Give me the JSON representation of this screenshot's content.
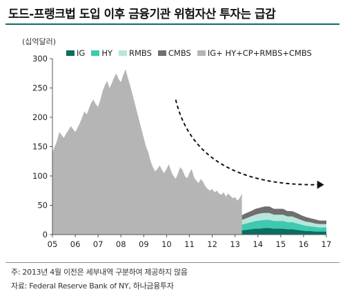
{
  "title": "도드-프랭크법 도입 이후 금융기관 위험자산 투자는 급감",
  "unit_label": "(십억달러)",
  "notes": {
    "note": "주: 2013년 4월 이전은 세부내역 구분하여 제공하지 않음",
    "source": "자료: Federal Reserve Bank of NY, 하나금융투자"
  },
  "colors": {
    "IG": "#0b6e5f",
    "HY": "#3fc9b0",
    "RMBS": "#b7e6dc",
    "CMBS": "#6f6f6f",
    "TOTAL": "#b5b5b5",
    "arrow": "#111111"
  },
  "chart_data": {
    "type": "area",
    "title": "도드-프랭크법 도입 이후 금융기관 위험자산 투자는 급감",
    "ylabel": "(십억달러)",
    "xlabel": "",
    "ylim": [
      0,
      300
    ],
    "yticks": [
      0,
      50,
      100,
      150,
      200,
      250,
      300
    ],
    "xlim": [
      2005,
      2017
    ],
    "xtick_labels": [
      "05",
      "06",
      "07",
      "08",
      "09",
      "10",
      "11",
      "12",
      "13",
      "14",
      "15",
      "16",
      "17"
    ],
    "grid": false,
    "legend": "top",
    "series": [
      {
        "name": "IG+ HY+CP+RMBS+CMBS",
        "x": [
          2005.0,
          2005.1,
          2005.2,
          2005.3,
          2005.4,
          2005.5,
          2005.6,
          2005.7,
          2005.8,
          2005.9,
          2006.0,
          2006.1,
          2006.2,
          2006.3,
          2006.4,
          2006.5,
          2006.6,
          2006.7,
          2006.8,
          2006.9,
          2007.0,
          2007.1,
          2007.2,
          2007.3,
          2007.4,
          2007.5,
          2007.6,
          2007.7,
          2007.8,
          2007.9,
          2008.0,
          2008.1,
          2008.2,
          2008.3,
          2008.4,
          2008.5,
          2008.6,
          2008.7,
          2008.8,
          2008.9,
          2009.0,
          2009.1,
          2009.2,
          2009.3,
          2009.4,
          2009.5,
          2009.6,
          2009.7,
          2009.8,
          2009.9,
          2010.0,
          2010.1,
          2010.2,
          2010.3,
          2010.4,
          2010.5,
          2010.6,
          2010.7,
          2010.8,
          2010.9,
          2011.0,
          2011.1,
          2011.2,
          2011.3,
          2011.4,
          2011.5,
          2011.6,
          2011.7,
          2011.8,
          2011.9,
          2012.0,
          2012.1,
          2012.2,
          2012.3,
          2012.4,
          2012.5,
          2012.6,
          2012.7,
          2012.8,
          2012.9,
          2013.0,
          2013.1,
          2013.2,
          2013.3
        ],
        "values": [
          140,
          150,
          160,
          175,
          170,
          165,
          172,
          178,
          185,
          180,
          175,
          182,
          190,
          200,
          210,
          205,
          215,
          225,
          230,
          222,
          218,
          230,
          245,
          255,
          262,
          250,
          258,
          268,
          275,
          265,
          260,
          272,
          282,
          268,
          255,
          240,
          225,
          210,
          195,
          180,
          165,
          150,
          140,
          125,
          115,
          108,
          112,
          118,
          110,
          105,
          112,
          120,
          108,
          100,
          95,
          105,
          115,
          110,
          100,
          96,
          105,
          112,
          98,
          92,
          88,
          95,
          90,
          82,
          78,
          75,
          78,
          72,
          75,
          70,
          68,
          72,
          65,
          70,
          66,
          62,
          64,
          58,
          62,
          70
        ]
      },
      {
        "name": "CMBS",
        "x": [
          2013.3,
          2013.5,
          2013.7,
          2013.9,
          2014.1,
          2014.3,
          2014.5,
          2014.7,
          2014.9,
          2015.1,
          2015.3,
          2015.5,
          2015.7,
          2015.9,
          2016.1,
          2016.3,
          2016.5,
          2016.7,
          2016.9,
          2017.0
        ],
        "values": [
          8,
          9,
          9,
          10,
          10,
          11,
          11,
          10,
          10,
          10,
          9,
          9,
          9,
          8,
          8,
          7,
          7,
          6,
          6,
          6
        ]
      },
      {
        "name": "RMBS",
        "x": [
          2013.3,
          2013.5,
          2013.7,
          2013.9,
          2014.1,
          2014.3,
          2014.5,
          2014.7,
          2014.9,
          2015.1,
          2015.3,
          2015.5,
          2015.7,
          2015.9,
          2016.1,
          2016.3,
          2016.5,
          2016.7,
          2016.9,
          2017.0
        ],
        "values": [
          8,
          9,
          10,
          11,
          12,
          12,
          12,
          11,
          11,
          11,
          10,
          10,
          9,
          8,
          7,
          7,
          6,
          6,
          6,
          6
        ]
      },
      {
        "name": "HY",
        "x": [
          2013.3,
          2013.5,
          2013.7,
          2013.9,
          2014.1,
          2014.3,
          2014.5,
          2014.7,
          2014.9,
          2015.1,
          2015.3,
          2015.5,
          2015.7,
          2015.9,
          2016.1,
          2016.3,
          2016.5,
          2016.7,
          2016.9,
          2017.0
        ],
        "values": [
          10,
          11,
          12,
          13,
          14,
          14,
          14,
          13,
          13,
          13,
          12,
          12,
          11,
          10,
          9,
          8,
          8,
          7,
          7,
          7
        ]
      },
      {
        "name": "IG",
        "x": [
          2013.3,
          2013.5,
          2013.7,
          2013.9,
          2014.1,
          2014.3,
          2014.5,
          2014.7,
          2014.9,
          2015.1,
          2015.3,
          2015.5,
          2015.7,
          2015.9,
          2016.1,
          2016.3,
          2016.5,
          2016.7,
          2016.9,
          2017.0
        ],
        "values": [
          7,
          8,
          9,
          10,
          10,
          11,
          11,
          10,
          10,
          10,
          9,
          9,
          8,
          7,
          6,
          6,
          5,
          5,
          5,
          5
        ]
      }
    ],
    "legend_entries": [
      "IG",
      "HY",
      "RMBS",
      "CMBS",
      "IG+ HY+CP+RMBS+CMBS"
    ],
    "annotations": [
      {
        "type": "dashed-arrow",
        "from_x": 2010.4,
        "from_y": 230,
        "to_x": 2016.9,
        "to_y": 85
      }
    ]
  }
}
